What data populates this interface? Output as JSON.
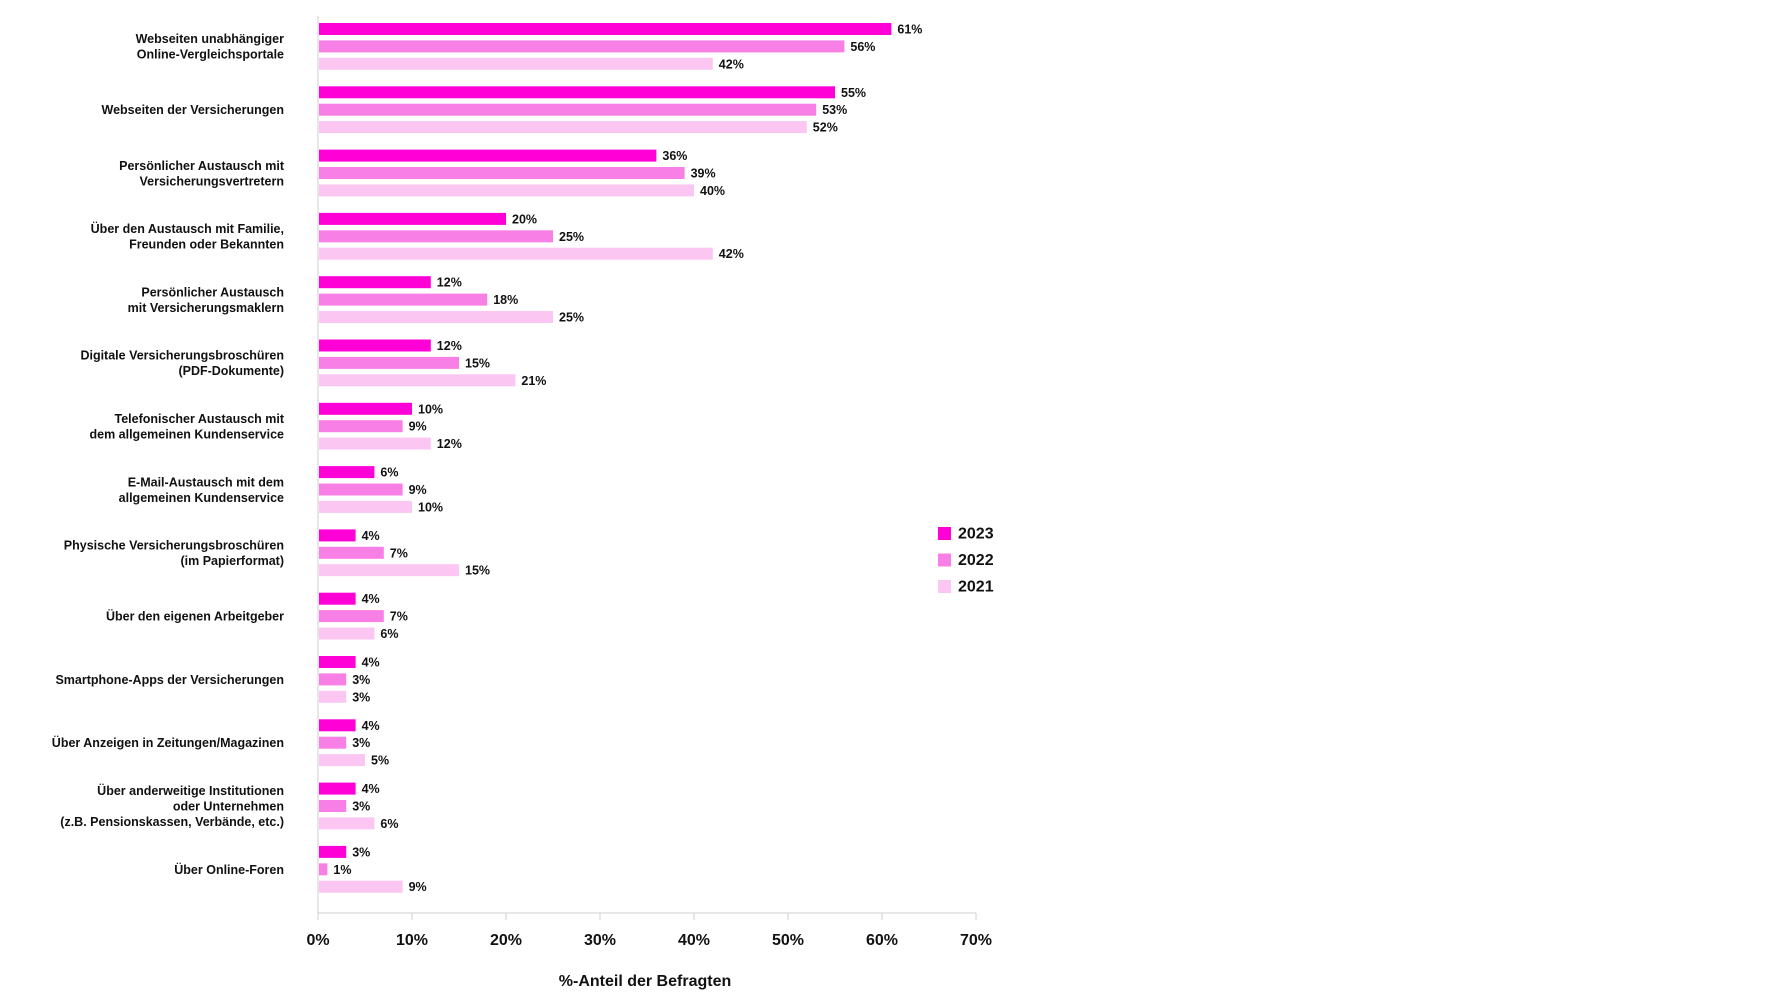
{
  "chart_data": {
    "type": "bar",
    "orientation": "horizontal",
    "categories": [
      "Webseiten unabhängiger\nOnline-Vergleichsportale",
      "Webseiten der Versicherungen",
      "Persönlicher Austausch mit\nVersicherungsvertretern",
      "Über den Austausch mit Familie,\nFreunden oder Bekannten",
      "Persönlicher Austausch\nmit Versicherungsmaklern",
      "Digitale Versicherungsbroschüren\n(PDF-Dokumente)",
      "Telefonischer Austausch mit\ndem allgemeinen Kundenservice",
      "E-Mail-Austausch mit dem\nallgemeinen Kundenservice",
      "Physische Versicherungsbroschüren\n(im Papierformat)",
      "Über den eigenen Arbeitgeber",
      "Smartphone-Apps der Versicherungen",
      "Über Anzeigen in Zeitungen/Magazinen",
      "Über anderweitige Institutionen\noder Unternehmen\n(z.B. Pensionskassen, Verbände, etc.)",
      "Über Online-Foren"
    ],
    "series": [
      {
        "name": "2023",
        "color": "#ff00d6",
        "values": [
          61,
          55,
          36,
          20,
          12,
          12,
          10,
          6,
          4,
          4,
          4,
          4,
          4,
          3
        ]
      },
      {
        "name": "2022",
        "color": "#f77fe6",
        "values": [
          56,
          53,
          39,
          25,
          18,
          15,
          9,
          9,
          7,
          7,
          3,
          3,
          3,
          1
        ]
      },
      {
        "name": "2021",
        "color": "#fbc6f2",
        "values": [
          42,
          52,
          40,
          42,
          25,
          21,
          12,
          10,
          15,
          6,
          3,
          5,
          6,
          9
        ]
      }
    ],
    "value_labels": [
      [
        "61%",
        "55%",
        "36%",
        "20%",
        "12%",
        "12%",
        "10%",
        "6%",
        "4%",
        "4%",
        "4%",
        "4%",
        "4%",
        "3%"
      ],
      [
        "56%",
        "53%",
        "39%",
        "25%",
        "18%",
        "15%",
        "9%",
        "9%",
        "7%",
        "7%",
        "3%",
        "3%",
        "3%",
        "1%"
      ],
      [
        "42%",
        "52%",
        "40%",
        "42%",
        "25%",
        "21%",
        "12%",
        "10%",
        "15%",
        "6%",
        "3%",
        "5%",
        "6%",
        "9%"
      ]
    ],
    "xlim": [
      0,
      70
    ],
    "xticks": [
      0,
      10,
      20,
      30,
      40,
      50,
      60,
      70
    ],
    "xtick_labels": [
      "0%",
      "10%",
      "20%",
      "30%",
      "40%",
      "50%",
      "60%",
      "70%"
    ],
    "xlabel": "%-Anteil der Befragten",
    "ylabel": "",
    "title": "",
    "grid": false,
    "legend_position": "right"
  }
}
